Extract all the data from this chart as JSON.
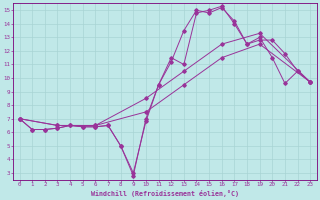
{
  "title": "Windchill (Refroidissement éolien,°C)",
  "bg_color": "#c0e8e8",
  "grid_color": "#a8d4d4",
  "line_color": "#993399",
  "spine_color": "#7a007a",
  "xlim": [
    -0.5,
    23.5
  ],
  "ylim": [
    2.5,
    15.5
  ],
  "xticks": [
    0,
    1,
    2,
    3,
    4,
    5,
    6,
    7,
    8,
    9,
    10,
    11,
    12,
    13,
    14,
    15,
    16,
    17,
    18,
    19,
    20,
    21,
    22,
    23
  ],
  "yticks": [
    3,
    4,
    5,
    6,
    7,
    8,
    9,
    10,
    11,
    12,
    13,
    14,
    15
  ],
  "curve1_x": [
    0,
    1,
    2,
    3,
    4,
    5,
    6,
    7,
    8,
    9,
    10,
    11,
    12,
    13,
    14,
    15,
    16,
    17,
    18,
    19,
    20,
    21,
    22,
    23
  ],
  "curve1_y": [
    7.0,
    6.2,
    6.2,
    6.3,
    6.5,
    6.4,
    6.4,
    6.5,
    5.0,
    3.0,
    6.8,
    9.5,
    11.2,
    13.5,
    15.0,
    14.8,
    15.2,
    14.2,
    12.5,
    13.0,
    11.5,
    9.6,
    10.5,
    9.7
  ],
  "curve2_x": [
    0,
    1,
    2,
    3,
    4,
    5,
    6,
    7,
    8,
    9,
    10,
    11,
    12,
    13,
    14,
    15,
    16,
    17,
    18,
    19,
    20,
    21,
    22,
    23
  ],
  "curve2_y": [
    7.0,
    6.2,
    6.2,
    6.3,
    6.5,
    6.4,
    6.4,
    6.5,
    5.0,
    2.8,
    7.0,
    9.5,
    11.5,
    11.0,
    14.8,
    15.0,
    15.3,
    14.0,
    12.5,
    12.8,
    12.8,
    11.8,
    10.5,
    9.7
  ],
  "curve3_x": [
    0,
    3,
    6,
    10,
    13,
    16,
    19,
    23
  ],
  "curve3_y": [
    7.0,
    6.5,
    6.5,
    7.5,
    9.5,
    11.5,
    12.5,
    9.7
  ],
  "curve4_x": [
    0,
    3,
    6,
    10,
    13,
    16,
    19,
    23
  ],
  "curve4_y": [
    7.0,
    6.5,
    6.5,
    8.5,
    10.5,
    12.5,
    13.3,
    9.7
  ]
}
